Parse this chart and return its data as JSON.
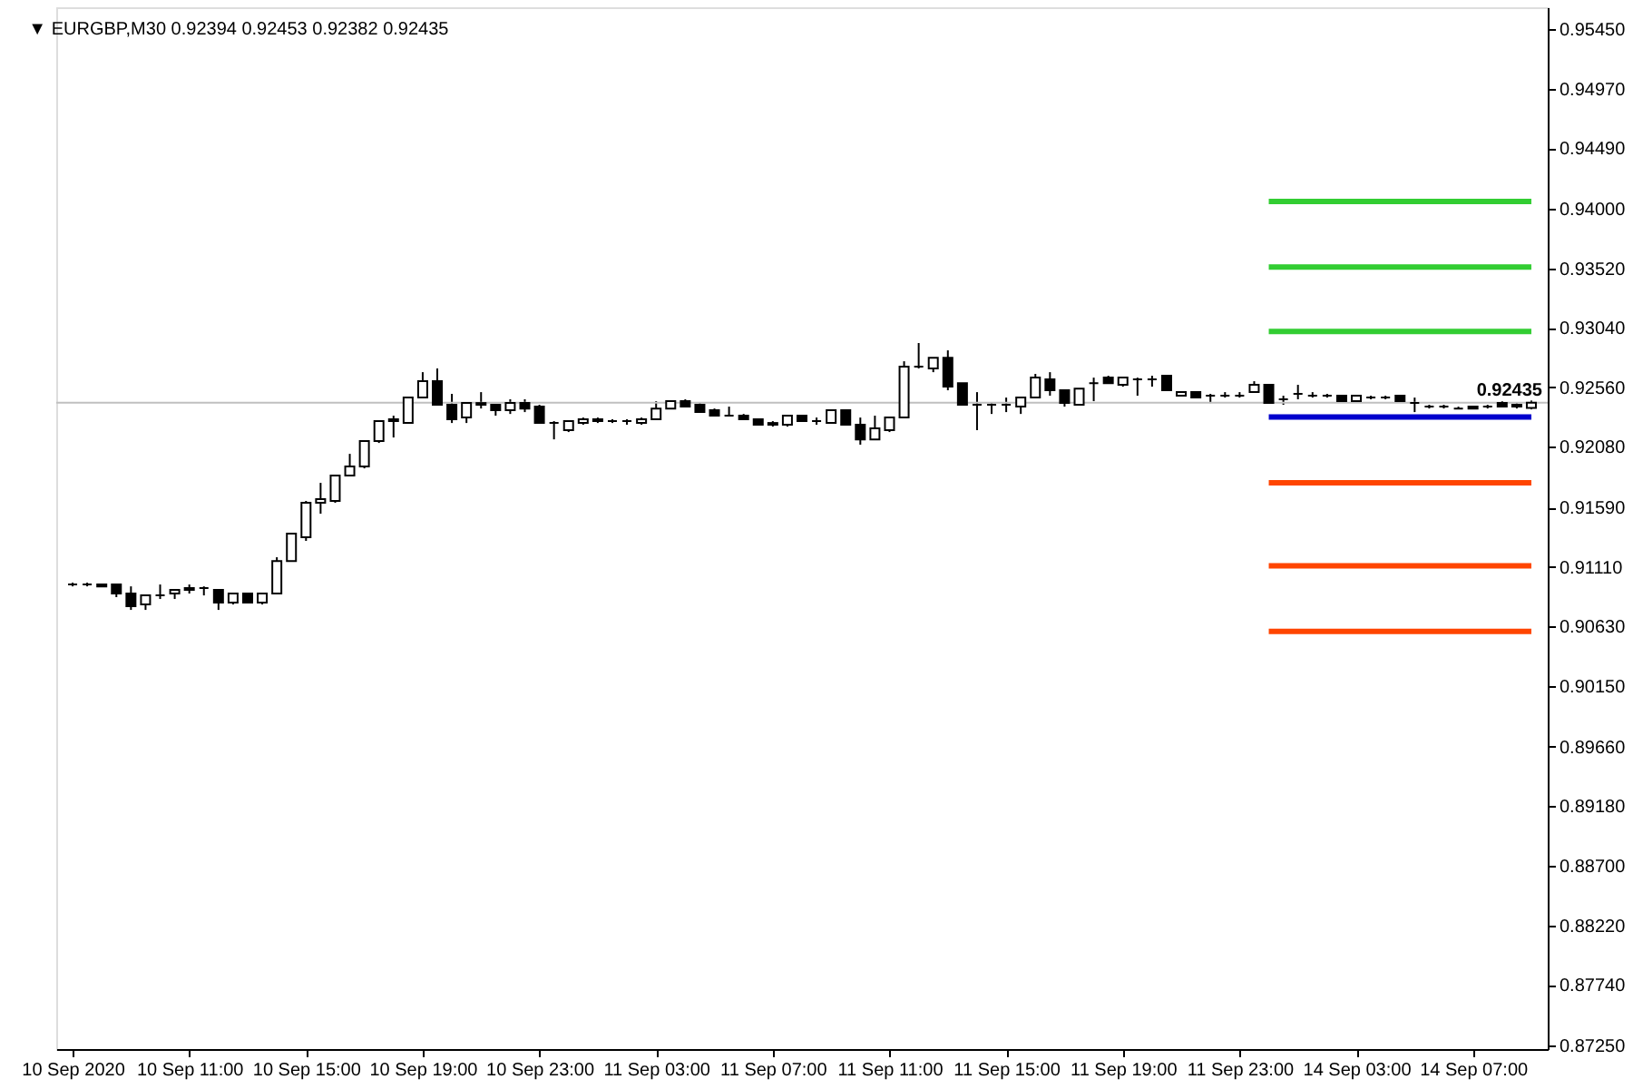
{
  "chart_data": {
    "type": "candlestick",
    "title": "▼ EURGBP,M30  0.92394 0.92453 0.92382 0.92435",
    "categories": [
      "10 Sep 2020",
      null,
      null,
      null,
      null,
      null,
      null,
      null,
      "10 Sep 11:00",
      null,
      null,
      null,
      null,
      null,
      null,
      null,
      "10 Sep 15:00",
      null,
      null,
      null,
      null,
      null,
      null,
      null,
      "10 Sep 19:00",
      null,
      null,
      null,
      null,
      null,
      null,
      null,
      "10 Sep 23:00",
      null,
      null,
      null,
      null,
      null,
      null,
      null,
      "11 Sep 03:00",
      null,
      null,
      null,
      null,
      null,
      null,
      null,
      "11 Sep 07:00",
      null,
      null,
      null,
      null,
      null,
      null,
      null,
      "11 Sep 11:00",
      null,
      null,
      null,
      null,
      null,
      null,
      null,
      "11 Sep 15:00",
      null,
      null,
      null,
      null,
      null,
      null,
      null,
      "11 Sep 19:00",
      null,
      null,
      null,
      null,
      null,
      null,
      null,
      "11 Sep 23:00",
      null,
      null,
      null,
      null,
      null,
      null,
      null,
      "14 Sep 03:00",
      null,
      null,
      null,
      null,
      null,
      null,
      null,
      "14 Sep 07:00",
      null,
      null,
      null,
      null
    ],
    "ohlc": [
      [
        0.90969,
        0.90984,
        0.90954,
        0.90969
      ],
      [
        0.90969,
        0.90984,
        0.90954,
        0.90969
      ],
      [
        0.90969,
        0.90969,
        0.90954,
        0.90954
      ],
      [
        0.90969,
        0.90969,
        0.90867,
        0.90896
      ],
      [
        0.90896,
        0.90954,
        0.90764,
        0.90793
      ],
      [
        0.90808,
        0.90881,
        0.90764,
        0.90881
      ],
      [
        0.90881,
        0.90969,
        0.90852,
        0.90881
      ],
      [
        0.90896,
        0.90925,
        0.90852,
        0.90925
      ],
      [
        0.90925,
        0.90969,
        0.90896,
        0.9094
      ],
      [
        0.9094,
        0.90954,
        0.90881,
        0.9094
      ],
      [
        0.90925,
        0.90925,
        0.90764,
        0.90823
      ],
      [
        0.90823,
        0.90896,
        0.90808,
        0.90896
      ],
      [
        0.90896,
        0.90896,
        0.90823,
        0.90823
      ],
      [
        0.90823,
        0.90896,
        0.90808,
        0.90896
      ],
      [
        0.90896,
        0.91189,
        0.90896,
        0.91159
      ],
      [
        0.91159,
        0.91379,
        0.91159,
        0.91379
      ],
      [
        0.9135,
        0.91643,
        0.91321,
        0.91628
      ],
      [
        0.91628,
        0.91789,
        0.9154,
        0.91657
      ],
      [
        0.91643,
        0.91848,
        0.91628,
        0.91848
      ],
      [
        0.91848,
        0.92023,
        0.91848,
        0.91921
      ],
      [
        0.91921,
        0.92126,
        0.91906,
        0.92126
      ],
      [
        0.92126,
        0.92287,
        0.92111,
        0.92287
      ],
      [
        0.92287,
        0.92331,
        0.92155,
        0.92302
      ],
      [
        0.92272,
        0.92477,
        0.92272,
        0.92477
      ],
      [
        0.92477,
        0.92682,
        0.92477,
        0.92609
      ],
      [
        0.92609,
        0.92712,
        0.92419,
        0.92419
      ],
      [
        0.92419,
        0.92507,
        0.92272,
        0.92302
      ],
      [
        0.92316,
        0.92433,
        0.92272,
        0.92433
      ],
      [
        0.92433,
        0.92521,
        0.92389,
        0.92419
      ],
      [
        0.92419,
        0.92419,
        0.92331,
        0.92375
      ],
      [
        0.92375,
        0.92463,
        0.92345,
        0.92433
      ],
      [
        0.92433,
        0.92463,
        0.9236,
        0.92389
      ],
      [
        0.92404,
        0.92419,
        0.92272,
        0.92272
      ],
      [
        0.92272,
        0.92287,
        0.9214,
        0.92272
      ],
      [
        0.92214,
        0.92287,
        0.92199,
        0.92287
      ],
      [
        0.92272,
        0.92316,
        0.92258,
        0.92302
      ],
      [
        0.92302,
        0.92316,
        0.92272,
        0.92287
      ],
      [
        0.92287,
        0.92302,
        0.92272,
        0.92287
      ],
      [
        0.92287,
        0.92302,
        0.92258,
        0.92287
      ],
      [
        0.92272,
        0.92316,
        0.92258,
        0.92302
      ],
      [
        0.92302,
        0.92448,
        0.92302,
        0.92389
      ],
      [
        0.92389,
        0.92448,
        0.92389,
        0.92448
      ],
      [
        0.92448,
        0.92463,
        0.92404,
        0.92404
      ],
      [
        0.92419,
        0.92433,
        0.9236,
        0.9236
      ],
      [
        0.92375,
        0.92389,
        0.92331,
        0.92331
      ],
      [
        0.92331,
        0.92404,
        0.92331,
        0.92331
      ],
      [
        0.92331,
        0.92345,
        0.92302,
        0.92302
      ],
      [
        0.92302,
        0.92302,
        0.92258,
        0.92258
      ],
      [
        0.92258,
        0.92287,
        0.92243,
        0.92272
      ],
      [
        0.92258,
        0.92331,
        0.92243,
        0.92331
      ],
      [
        0.92331,
        0.92331,
        0.92287,
        0.92287
      ],
      [
        0.92287,
        0.92316,
        0.92258,
        0.92287
      ],
      [
        0.92272,
        0.92375,
        0.92272,
        0.92375
      ],
      [
        0.92375,
        0.92375,
        0.92258,
        0.92258
      ],
      [
        0.92258,
        0.92316,
        0.92097,
        0.9214
      ],
      [
        0.9214,
        0.92331,
        0.9214,
        0.92228
      ],
      [
        0.92214,
        0.92316,
        0.92199,
        0.92316
      ],
      [
        0.92316,
        0.9277,
        0.92316,
        0.92726
      ],
      [
        0.92726,
        0.92917,
        0.92712,
        0.92726
      ],
      [
        0.92712,
        0.92799,
        0.92682,
        0.92799
      ],
      [
        0.92799,
        0.92858,
        0.92536,
        0.92565
      ],
      [
        0.92594,
        0.92594,
        0.92419,
        0.92419
      ],
      [
        0.92419,
        0.92521,
        0.92214,
        0.92419
      ],
      [
        0.92419,
        0.92433,
        0.92345,
        0.92419
      ],
      [
        0.92419,
        0.92477,
        0.9236,
        0.92419
      ],
      [
        0.92404,
        0.92477,
        0.92345,
        0.92477
      ],
      [
        0.92477,
        0.92668,
        0.92477,
        0.92638
      ],
      [
        0.92624,
        0.92682,
        0.92492,
        0.92536
      ],
      [
        0.92536,
        0.92536,
        0.92404,
        0.92433
      ],
      [
        0.92419,
        0.9255,
        0.92419,
        0.9255
      ],
      [
        0.92594,
        0.92638,
        0.92448,
        0.92594
      ],
      [
        0.92638,
        0.92653,
        0.92594,
        0.92594
      ],
      [
        0.9258,
        0.92638,
        0.92565,
        0.92638
      ],
      [
        0.92624,
        0.92638,
        0.92492,
        0.92624
      ],
      [
        0.92624,
        0.92653,
        0.92565,
        0.92624
      ],
      [
        0.92653,
        0.92653,
        0.92536,
        0.92536
      ],
      [
        0.92492,
        0.92521,
        0.92492,
        0.92521
      ],
      [
        0.92521,
        0.92521,
        0.92477,
        0.92477
      ],
      [
        0.92492,
        0.92507,
        0.92433,
        0.92492
      ],
      [
        0.92492,
        0.92521,
        0.92477,
        0.92492
      ],
      [
        0.92492,
        0.92521,
        0.92477,
        0.92492
      ],
      [
        0.92521,
        0.92609,
        0.92521,
        0.9258
      ],
      [
        0.9258,
        0.9258,
        0.92433,
        0.92433
      ],
      [
        0.92463,
        0.92492,
        0.92419,
        0.92463
      ],
      [
        0.92507,
        0.9258,
        0.92463,
        0.92507
      ],
      [
        0.92492,
        0.92521,
        0.92477,
        0.92492
      ],
      [
        0.92492,
        0.92507,
        0.92477,
        0.92492
      ],
      [
        0.92492,
        0.92492,
        0.92448,
        0.92448
      ],
      [
        0.92448,
        0.92492,
        0.92448,
        0.92492
      ],
      [
        0.92477,
        0.92492,
        0.92463,
        0.92477
      ],
      [
        0.92477,
        0.92492,
        0.92463,
        0.92477
      ],
      [
        0.92492,
        0.92492,
        0.92448,
        0.92448
      ],
      [
        0.92433,
        0.92477,
        0.9236,
        0.92433
      ],
      [
        0.92404,
        0.92419,
        0.92389,
        0.92404
      ],
      [
        0.92404,
        0.92419,
        0.92389,
        0.92404
      ],
      [
        0.92389,
        0.92404,
        0.92389,
        0.92389
      ],
      [
        0.92404,
        0.92404,
        0.92389,
        0.92389
      ],
      [
        0.92404,
        0.92419,
        0.92389,
        0.92404
      ],
      [
        0.92433,
        0.92448,
        0.92404,
        0.92404
      ],
      [
        0.92404,
        0.92433,
        0.92389,
        0.92419
      ],
      [
        0.92394,
        0.92453,
        0.92382,
        0.92435
      ]
    ],
    "series": [
      {
        "type": "line",
        "color": "#32cd32",
        "values": [
          null,
          null,
          null,
          null,
          null,
          null,
          null,
          null,
          null,
          null,
          null,
          null,
          null,
          null,
          null,
          null,
          null,
          null,
          null,
          null,
          null,
          null,
          null,
          null,
          null,
          null,
          null,
          null,
          null,
          null,
          null,
          null,
          null,
          null,
          null,
          null,
          null,
          null,
          null,
          null,
          null,
          null,
          null,
          null,
          null,
          null,
          null,
          null,
          null,
          null,
          null,
          null,
          null,
          null,
          null,
          null,
          null,
          null,
          null,
          null,
          null,
          null,
          null,
          null,
          null,
          null,
          null,
          null,
          null,
          null,
          null,
          null,
          null,
          null,
          null,
          null,
          null,
          null,
          null,
          null,
          null,
          null,
          0.9406,
          0.9406,
          0.9406,
          0.9406,
          0.9406,
          0.9406,
          0.9406,
          0.9406,
          0.9406,
          0.9406,
          0.9406,
          0.9406,
          0.9406,
          0.9406,
          0.9406,
          0.9406,
          0.9406,
          0.9406,
          0.9406
        ]
      },
      {
        "type": "line",
        "color": "#32cd32",
        "values": [
          null,
          null,
          null,
          null,
          null,
          null,
          null,
          null,
          null,
          null,
          null,
          null,
          null,
          null,
          null,
          null,
          null,
          null,
          null,
          null,
          null,
          null,
          null,
          null,
          null,
          null,
          null,
          null,
          null,
          null,
          null,
          null,
          null,
          null,
          null,
          null,
          null,
          null,
          null,
          null,
          null,
          null,
          null,
          null,
          null,
          null,
          null,
          null,
          null,
          null,
          null,
          null,
          null,
          null,
          null,
          null,
          null,
          null,
          null,
          null,
          null,
          null,
          null,
          null,
          null,
          null,
          null,
          null,
          null,
          null,
          null,
          null,
          null,
          null,
          null,
          null,
          null,
          null,
          null,
          null,
          null,
          null,
          0.9353,
          0.9353,
          0.9353,
          0.9353,
          0.9353,
          0.9353,
          0.9353,
          0.9353,
          0.9353,
          0.9353,
          0.9353,
          0.9353,
          0.9353,
          0.9353,
          0.9353,
          0.9353,
          0.9353,
          0.9353,
          0.9353
        ]
      },
      {
        "type": "line",
        "color": "#32cd32",
        "values": [
          null,
          null,
          null,
          null,
          null,
          null,
          null,
          null,
          null,
          null,
          null,
          null,
          null,
          null,
          null,
          null,
          null,
          null,
          null,
          null,
          null,
          null,
          null,
          null,
          null,
          null,
          null,
          null,
          null,
          null,
          null,
          null,
          null,
          null,
          null,
          null,
          null,
          null,
          null,
          null,
          null,
          null,
          null,
          null,
          null,
          null,
          null,
          null,
          null,
          null,
          null,
          null,
          null,
          null,
          null,
          null,
          null,
          null,
          null,
          null,
          null,
          null,
          null,
          null,
          null,
          null,
          null,
          null,
          null,
          null,
          null,
          null,
          null,
          null,
          null,
          null,
          null,
          null,
          null,
          null,
          null,
          null,
          0.9301,
          0.9301,
          0.9301,
          0.9301,
          0.9301,
          0.9301,
          0.9301,
          0.9301,
          0.9301,
          0.9301,
          0.9301,
          0.9301,
          0.9301,
          0.9301,
          0.9301,
          0.9301,
          0.9301,
          0.9301,
          0.9301
        ]
      },
      {
        "type": "line",
        "color": "#0000cd",
        "values": [
          null,
          null,
          null,
          null,
          null,
          null,
          null,
          null,
          null,
          null,
          null,
          null,
          null,
          null,
          null,
          null,
          null,
          null,
          null,
          null,
          null,
          null,
          null,
          null,
          null,
          null,
          null,
          null,
          null,
          null,
          null,
          null,
          null,
          null,
          null,
          null,
          null,
          null,
          null,
          null,
          null,
          null,
          null,
          null,
          null,
          null,
          null,
          null,
          null,
          null,
          null,
          null,
          null,
          null,
          null,
          null,
          null,
          null,
          null,
          null,
          null,
          null,
          null,
          null,
          null,
          null,
          null,
          null,
          null,
          null,
          null,
          null,
          null,
          null,
          null,
          null,
          null,
          null,
          null,
          null,
          null,
          null,
          0.9232,
          0.9232,
          0.9232,
          0.9232,
          0.9232,
          0.9232,
          0.9232,
          0.9232,
          0.9232,
          0.9232,
          0.9232,
          0.9232,
          0.9232,
          0.9232,
          0.9232,
          0.9232,
          0.9232,
          0.9232,
          0.9232
        ]
      },
      {
        "type": "line",
        "color": "#ff4500",
        "values": [
          null,
          null,
          null,
          null,
          null,
          null,
          null,
          null,
          null,
          null,
          null,
          null,
          null,
          null,
          null,
          null,
          null,
          null,
          null,
          null,
          null,
          null,
          null,
          null,
          null,
          null,
          null,
          null,
          null,
          null,
          null,
          null,
          null,
          null,
          null,
          null,
          null,
          null,
          null,
          null,
          null,
          null,
          null,
          null,
          null,
          null,
          null,
          null,
          null,
          null,
          null,
          null,
          null,
          null,
          null,
          null,
          null,
          null,
          null,
          null,
          null,
          null,
          null,
          null,
          null,
          null,
          null,
          null,
          null,
          null,
          null,
          null,
          null,
          null,
          null,
          null,
          null,
          null,
          null,
          null,
          null,
          null,
          0.9179,
          0.9179,
          0.9179,
          0.9179,
          0.9179,
          0.9179,
          0.9179,
          0.9179,
          0.9179,
          0.9179,
          0.9179,
          0.9179,
          0.9179,
          0.9179,
          0.9179,
          0.9179,
          0.9179,
          0.9179,
          0.9179
        ]
      },
      {
        "type": "line",
        "color": "#ff4500",
        "values": [
          null,
          null,
          null,
          null,
          null,
          null,
          null,
          null,
          null,
          null,
          null,
          null,
          null,
          null,
          null,
          null,
          null,
          null,
          null,
          null,
          null,
          null,
          null,
          null,
          null,
          null,
          null,
          null,
          null,
          null,
          null,
          null,
          null,
          null,
          null,
          null,
          null,
          null,
          null,
          null,
          null,
          null,
          null,
          null,
          null,
          null,
          null,
          null,
          null,
          null,
          null,
          null,
          null,
          null,
          null,
          null,
          null,
          null,
          null,
          null,
          null,
          null,
          null,
          null,
          null,
          null,
          null,
          null,
          null,
          null,
          null,
          null,
          null,
          null,
          null,
          null,
          null,
          null,
          null,
          null,
          null,
          null,
          0.9112,
          0.9112,
          0.9112,
          0.9112,
          0.9112,
          0.9112,
          0.9112,
          0.9112,
          0.9112,
          0.9112,
          0.9112,
          0.9112,
          0.9112,
          0.9112,
          0.9112,
          0.9112,
          0.9112,
          0.9112,
          0.9112
        ]
      },
      {
        "type": "line",
        "color": "#ff4500",
        "values": [
          null,
          null,
          null,
          null,
          null,
          null,
          null,
          null,
          null,
          null,
          null,
          null,
          null,
          null,
          null,
          null,
          null,
          null,
          null,
          null,
          null,
          null,
          null,
          null,
          null,
          null,
          null,
          null,
          null,
          null,
          null,
          null,
          null,
          null,
          null,
          null,
          null,
          null,
          null,
          null,
          null,
          null,
          null,
          null,
          null,
          null,
          null,
          null,
          null,
          null,
          null,
          null,
          null,
          null,
          null,
          null,
          null,
          null,
          null,
          null,
          null,
          null,
          null,
          null,
          null,
          null,
          null,
          null,
          null,
          null,
          null,
          null,
          null,
          null,
          null,
          null,
          null,
          null,
          null,
          null,
          null,
          null,
          0.9059,
          0.9059,
          0.9059,
          0.9059,
          0.9059,
          0.9059,
          0.9059,
          0.9059,
          0.9059,
          0.9059,
          0.9059,
          0.9059,
          0.9059,
          0.9059,
          0.9059,
          0.9059,
          0.9059,
          0.9059,
          0.9059
        ]
      }
    ],
    "ref_lines": [
      {
        "axis": "y",
        "value": 0.92435,
        "label": "0.92435",
        "color": "#c0c0c0"
      }
    ],
    "ylim": [
      0.87221,
      0.95626
    ],
    "yticks": [
      {
        "value": 0.8725,
        "label": "0.87250"
      },
      {
        "value": 0.8774,
        "label": "0.87740"
      },
      {
        "value": 0.8822,
        "label": "0.88220"
      },
      {
        "value": 0.887,
        "label": "0.88700"
      },
      {
        "value": 0.8918,
        "label": "0.89180"
      },
      {
        "value": 0.8966,
        "label": "0.89660"
      },
      {
        "value": 0.9015,
        "label": "0.90150"
      },
      {
        "value": 0.9063,
        "label": "0.90630"
      },
      {
        "value": 0.9111,
        "label": "0.91110"
      },
      {
        "value": 0.9159,
        "label": "0.91590"
      },
      {
        "value": 0.9208,
        "label": "0.92080"
      },
      {
        "value": 0.9256,
        "label": "0.92560"
      },
      {
        "value": 0.9304,
        "label": "0.93040"
      },
      {
        "value": 0.9352,
        "label": "0.93520"
      },
      {
        "value": 0.94,
        "label": "0.94000"
      },
      {
        "value": 0.9449,
        "label": "0.94490"
      },
      {
        "value": 0.9497,
        "label": "0.94970"
      },
      {
        "value": 0.9545,
        "label": "0.95450"
      }
    ],
    "grid": false
  }
}
